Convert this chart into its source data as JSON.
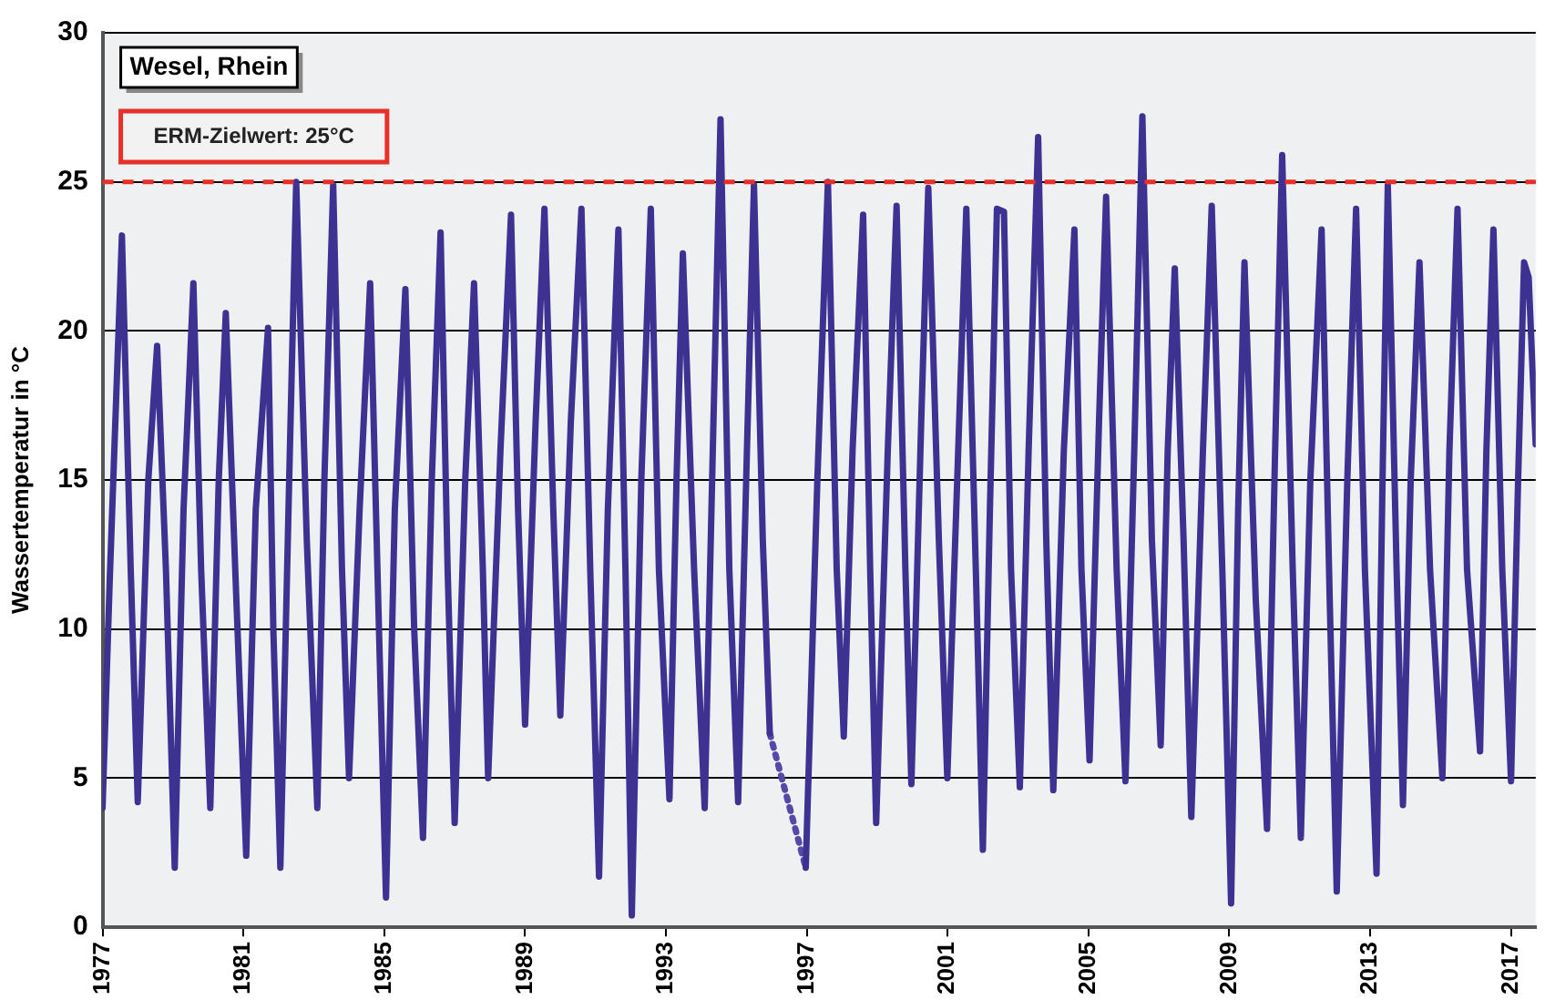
{
  "chart_data": {
    "type": "line",
    "ylabel": "Wassertemperatur in °C",
    "annotations": [
      "Wesel, Rhein"
    ],
    "xlim": [
      1977,
      2017.7
    ],
    "xticks": [
      1977,
      1981,
      1985,
      1989,
      1993,
      1997,
      2001,
      2005,
      2009,
      2013,
      2017
    ],
    "ylim": [
      0,
      30
    ],
    "yticks": [
      0,
      5,
      10,
      15,
      20,
      25,
      30
    ],
    "grid": "y",
    "legend": false,
    "marker": "none",
    "ref_lines": [
      {
        "axis": "y",
        "value": 25,
        "label": "ERM-Zielwert: 25°C",
        "color": "#e8302a",
        "line_style": "dashed"
      }
    ],
    "series": [
      {
        "color": "#3d3192",
        "line_style": "solid",
        "x": [
          1977.0,
          1977.2,
          1977.55,
          1977.8,
          1978.0,
          1978.3,
          1978.55,
          1978.8,
          1979.05,
          1979.3,
          1979.58,
          1979.8,
          1980.06,
          1980.3,
          1980.5,
          1980.8,
          1981.08,
          1981.35,
          1981.7,
          1981.85,
          1982.05,
          1982.3,
          1982.5,
          1982.8,
          1983.1,
          1983.3,
          1983.55,
          1983.8,
          1984.0,
          1984.3,
          1984.6,
          1984.85,
          1985.05,
          1985.3,
          1985.6,
          1985.85,
          1986.1,
          1986.35,
          1986.6,
          1986.8,
          1987.0,
          1987.3,
          1987.55,
          1987.8,
          1987.95,
          1988.3,
          1988.6,
          1988.8,
          1989.0,
          1989.3,
          1989.55,
          1989.8,
          1990.0,
          1990.3,
          1990.6,
          1990.85,
          1991.1,
          1991.35,
          1991.65,
          1991.85,
          1992.03,
          1992.3,
          1992.57,
          1992.8,
          1993.1,
          1993.3,
          1993.48,
          1993.8,
          1994.1,
          1994.35,
          1994.55,
          1994.8,
          1995.05,
          1995.3,
          1995.5,
          1995.75,
          1995.95,
          1996.5,
          1996.97,
          1997.3,
          1997.6,
          1997.85,
          1998.05,
          1998.3,
          1998.6,
          1998.8,
          1998.97,
          1999.3,
          1999.55,
          1999.8,
          1999.97,
          2000.25,
          2000.45,
          2000.75,
          2000.99,
          2001.3,
          2001.53,
          2001.8,
          2002.0,
          2002.2,
          2002.4,
          2002.6,
          2002.8,
          2003.05,
          2003.3,
          2003.57,
          2003.8,
          2004.0,
          2004.3,
          2004.6,
          2004.8,
          2005.03,
          2005.3,
          2005.5,
          2005.8,
          2006.05,
          2006.3,
          2006.53,
          2006.8,
          2007.05,
          2007.25,
          2007.45,
          2007.7,
          2007.92,
          2008.25,
          2008.5,
          2008.8,
          2009.05,
          2009.25,
          2009.43,
          2009.75,
          2010.07,
          2010.3,
          2010.5,
          2010.8,
          2011.03,
          2011.3,
          2011.62,
          2011.85,
          2012.05,
          2012.35,
          2012.6,
          2012.85,
          2013.18,
          2013.35,
          2013.5,
          2013.75,
          2013.93,
          2014.15,
          2014.4,
          2014.7,
          2015.05,
          2015.25,
          2015.48,
          2015.75,
          2016.12,
          2016.3,
          2016.5,
          2016.75,
          2017.0,
          2017.2,
          2017.37,
          2017.5,
          2017.7
        ],
        "values": [
          4.0,
          11.5,
          23.2,
          12,
          4.2,
          15,
          19.5,
          12,
          2.0,
          14,
          21.6,
          12,
          4.0,
          15,
          20.6,
          11,
          2.4,
          14,
          20.1,
          10,
          2.0,
          15,
          25.0,
          13,
          4.0,
          15,
          24.9,
          12,
          5.0,
          14,
          21.6,
          10,
          1.0,
          14,
          21.4,
          10,
          3.0,
          15,
          23.3,
          12,
          3.5,
          15,
          21.6,
          12,
          5.0,
          16,
          23.9,
          14,
          6.8,
          17,
          24.1,
          14,
          7.1,
          17,
          24.1,
          12,
          1.7,
          14,
          23.4,
          12,
          0.4,
          15,
          24.1,
          12,
          4.3,
          15,
          22.6,
          12,
          4.0,
          17,
          27.1,
          12,
          4.2,
          16,
          24.9,
          13,
          6.5,
          null,
          2.0,
          15,
          25.0,
          12,
          6.4,
          16,
          23.9,
          12,
          3.5,
          16,
          24.2,
          12,
          4.8,
          17,
          24.8,
          13,
          5.0,
          16,
          24.1,
          12,
          2.6,
          14,
          24.1,
          24,
          12,
          4.7,
          16,
          26.5,
          13,
          4.6,
          16,
          23.4,
          12,
          5.6,
          17,
          24.5,
          12,
          4.9,
          16,
          27.2,
          13,
          6.1,
          16,
          22.1,
          13,
          3.7,
          16,
          24.2,
          12,
          0.8,
          14,
          22.3,
          11,
          3.3,
          16,
          25.9,
          12,
          3.0,
          15,
          23.4,
          11,
          1.2,
          15,
          24.1,
          12,
          1.8,
          15,
          24.9,
          12,
          4.1,
          15,
          22.3,
          12,
          5.0,
          16,
          24.1,
          12,
          5.9,
          16,
          23.4,
          12,
          4.9,
          15,
          22.3,
          21.8,
          16.2
        ]
      },
      {
        "color": "#5548a8",
        "line_style": "dotted",
        "x": [
          1995.95,
          1996.97
        ],
        "values": [
          6.5,
          2.0
        ]
      }
    ]
  }
}
